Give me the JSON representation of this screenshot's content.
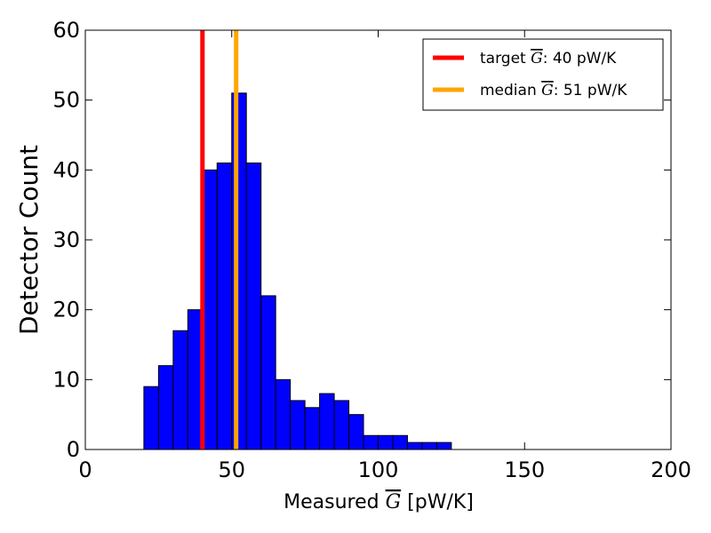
{
  "chart_data": {
    "type": "bar",
    "subtype": "histogram",
    "xlabel": {
      "prefix": "Measured ",
      "symbol": "G",
      "suffix": " [pW/K]"
    },
    "ylabel": "Detector Count",
    "xlim": [
      0,
      200
    ],
    "ylim": [
      0,
      60
    ],
    "xticks": [
      0,
      50,
      100,
      150,
      200
    ],
    "yticks": [
      0,
      10,
      20,
      30,
      40,
      50,
      60
    ],
    "bin_width": 5,
    "bins": [
      {
        "x0": 20,
        "x1": 25,
        "count": 9
      },
      {
        "x0": 25,
        "x1": 30,
        "count": 12
      },
      {
        "x0": 30,
        "x1": 35,
        "count": 17
      },
      {
        "x0": 35,
        "x1": 40,
        "count": 20
      },
      {
        "x0": 40,
        "x1": 45,
        "count": 40
      },
      {
        "x0": 45,
        "x1": 50,
        "count": 41
      },
      {
        "x0": 50,
        "x1": 55,
        "count": 51
      },
      {
        "x0": 55,
        "x1": 60,
        "count": 41
      },
      {
        "x0": 60,
        "x1": 65,
        "count": 22
      },
      {
        "x0": 65,
        "x1": 70,
        "count": 10
      },
      {
        "x0": 70,
        "x1": 75,
        "count": 7
      },
      {
        "x0": 75,
        "x1": 80,
        "count": 6
      },
      {
        "x0": 80,
        "x1": 85,
        "count": 8
      },
      {
        "x0": 85,
        "x1": 90,
        "count": 7
      },
      {
        "x0": 90,
        "x1": 95,
        "count": 5
      },
      {
        "x0": 95,
        "x1": 100,
        "count": 2
      },
      {
        "x0": 100,
        "x1": 105,
        "count": 2
      },
      {
        "x0": 105,
        "x1": 110,
        "count": 2
      },
      {
        "x0": 110,
        "x1": 115,
        "count": 1
      },
      {
        "x0": 115,
        "x1": 120,
        "count": 1
      },
      {
        "x0": 120,
        "x1": 125,
        "count": 1
      }
    ],
    "bar_color": "#0000ff",
    "vlines": [
      {
        "label_prefix": "target ",
        "symbol": "G",
        "label_suffix": ": 40 pW/K",
        "x": 40,
        "color": "#ff0000"
      },
      {
        "label_prefix": "median ",
        "symbol": "G",
        "label_suffix": ": 51 pW/K",
        "x": 51.5,
        "color": "#ffa500"
      }
    ],
    "legend_position": "top-right",
    "grid": false
  }
}
